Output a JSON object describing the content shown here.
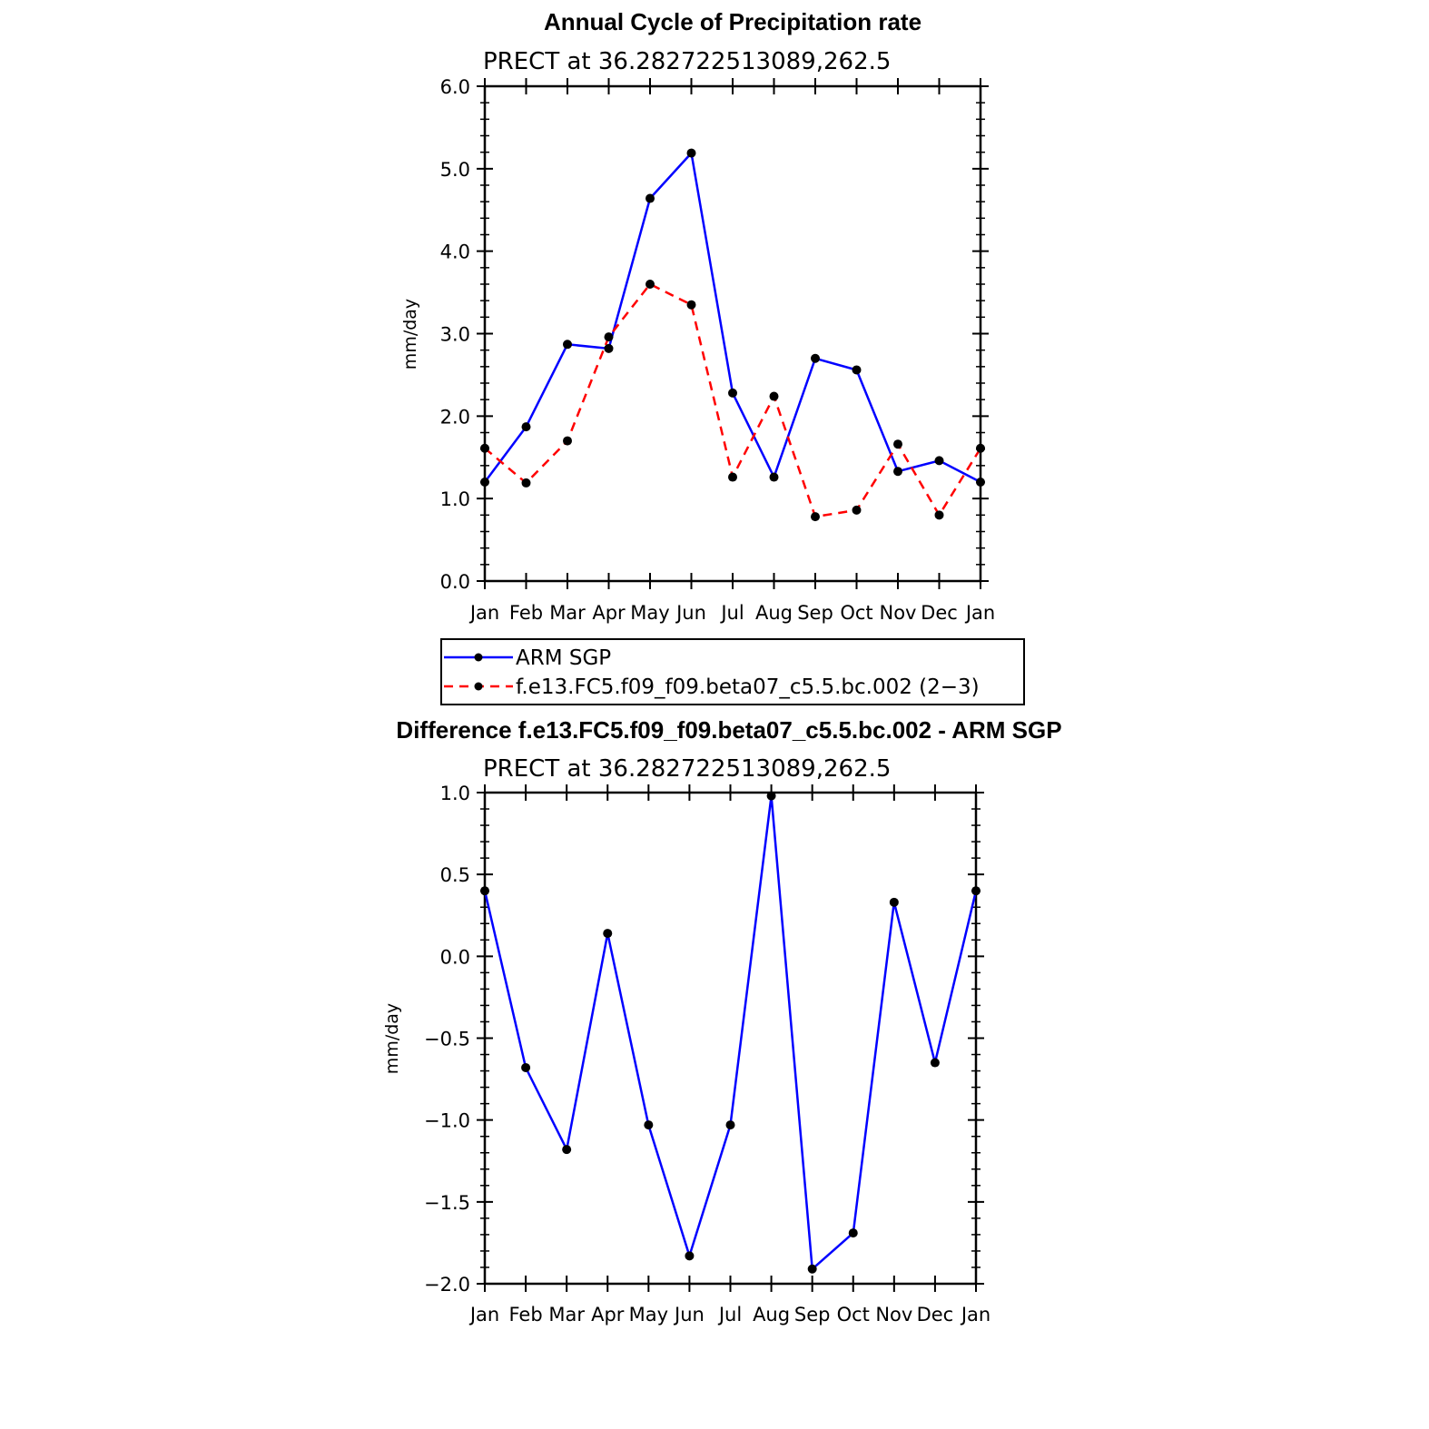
{
  "chart_data": [
    {
      "type": "line",
      "title": "Annual Cycle of Precipitation rate",
      "subtitle": "PRECT at 36.282722513089,262.5",
      "ylabel": "mm/day",
      "ylim": [
        0.0,
        6.0
      ],
      "yticks": [
        "0.0",
        "1.0",
        "2.0",
        "3.0",
        "4.0",
        "5.0",
        "6.0"
      ],
      "ytick_values": [
        0,
        1,
        2,
        3,
        4,
        5,
        6
      ],
      "categories": [
        "Jan",
        "Feb",
        "Mar",
        "Apr",
        "May",
        "Jun",
        "Jul",
        "Aug",
        "Sep",
        "Oct",
        "Nov",
        "Dec",
        "Jan"
      ],
      "series": [
        {
          "name": "ARM SGP",
          "color": "#0000ff",
          "dash": "solid",
          "values": [
            1.2,
            1.87,
            2.87,
            2.82,
            4.64,
            5.19,
            2.28,
            1.26,
            2.7,
            2.56,
            1.33,
            1.46,
            1.2
          ]
        },
        {
          "name": "f.e13.FC5.f09_f09.beta07_c5.5.bc.002 (2−3)",
          "color": "#ff0000",
          "dash": "dashed",
          "values": [
            1.61,
            1.19,
            1.7,
            2.96,
            3.6,
            3.35,
            1.26,
            2.24,
            0.78,
            0.86,
            1.66,
            0.8,
            1.61
          ]
        }
      ]
    },
    {
      "type": "line",
      "title": "Difference f.e13.FC5.f09_f09.beta07_c5.5.bc.002 - ARM SGP",
      "subtitle": "PRECT at 36.282722513089,262.5",
      "ylabel": "mm/day",
      "ylim": [
        -2.0,
        1.0
      ],
      "yticks": [
        "−2.0",
        "−1.5",
        "−1.0",
        "−0.5",
        "0.0",
        "0.5",
        "1.0"
      ],
      "ytick_values": [
        -2.0,
        -1.5,
        -1.0,
        -0.5,
        0.0,
        0.5,
        1.0
      ],
      "categories": [
        "Jan",
        "Feb",
        "Mar",
        "Apr",
        "May",
        "Jun",
        "Jul",
        "Aug",
        "Sep",
        "Oct",
        "Nov",
        "Dec",
        "Jan"
      ],
      "series": [
        {
          "name": "Difference",
          "color": "#0000ff",
          "dash": "solid",
          "values": [
            0.4,
            -0.68,
            -1.18,
            0.14,
            -1.03,
            -1.83,
            -1.03,
            0.98,
            -1.91,
            -1.69,
            0.33,
            -0.65,
            0.4
          ]
        }
      ]
    }
  ]
}
